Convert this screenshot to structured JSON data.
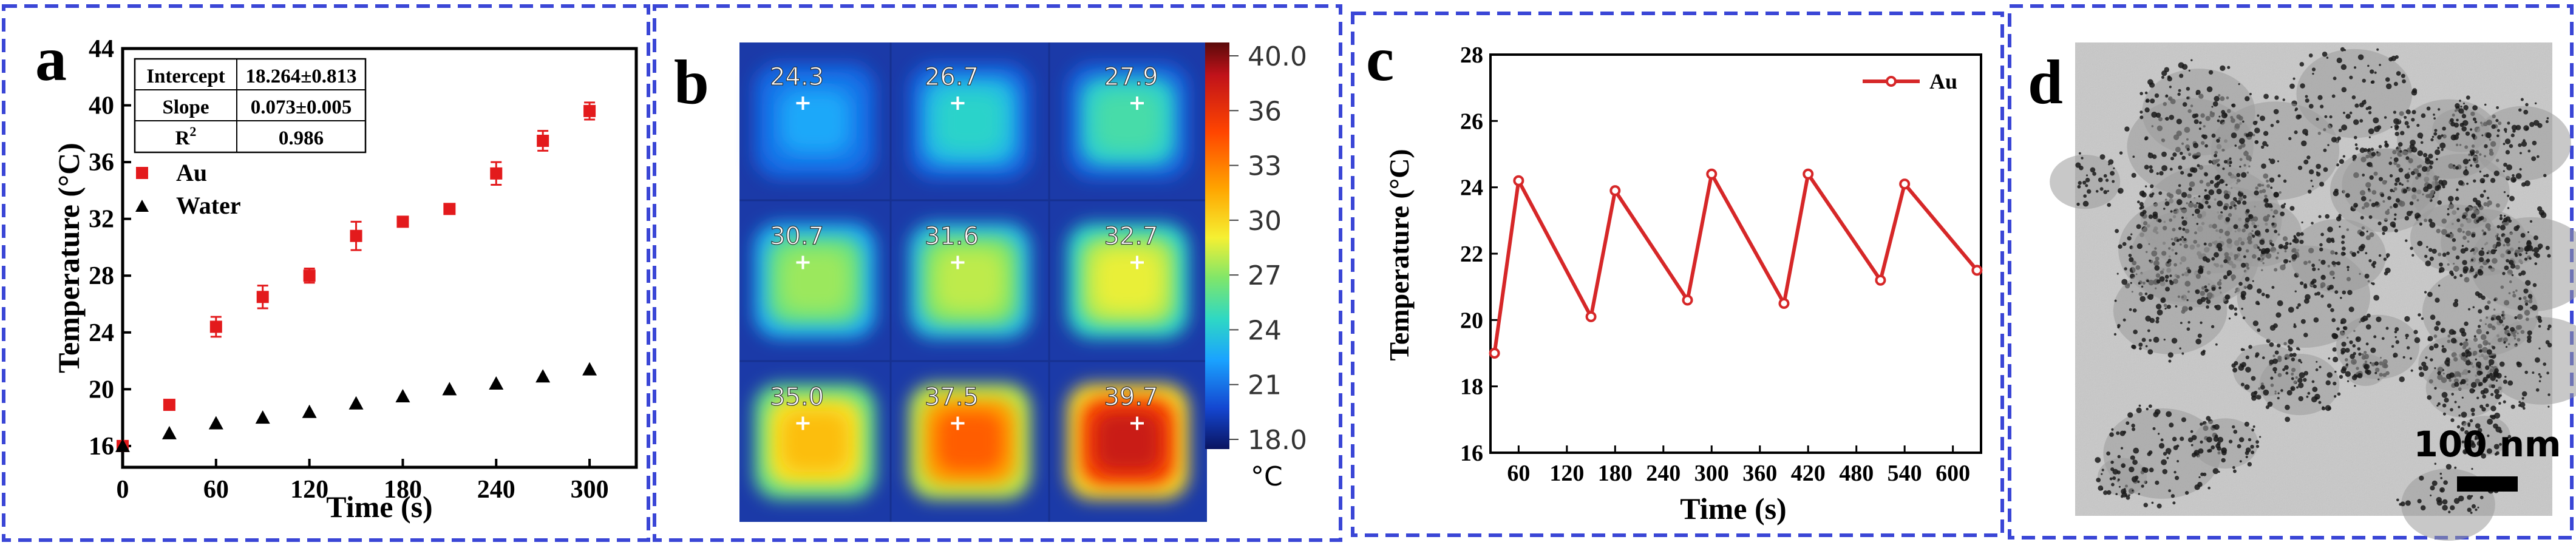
{
  "panels": {
    "a": {
      "letter": "a"
    },
    "b": {
      "letter": "b"
    },
    "c": {
      "letter": "c"
    },
    "d": {
      "letter": "d",
      "scale_bar_label": "100 nm"
    }
  },
  "fit_table": {
    "rows": [
      {
        "label": "Intercept",
        "value": "18.264±0.813"
      },
      {
        "label": "Slope",
        "value": "0.073±0.005"
      },
      {
        "label": "R",
        "sup": "2",
        "value": "0.986"
      }
    ]
  },
  "colors": {
    "au": "#e31a1c",
    "water": "#000000",
    "panel_border": "#3a46d6",
    "c_line": "#d62728"
  },
  "chart_data": [
    {
      "panel": "a",
      "type": "scatter",
      "xlabel": "Time (s)",
      "ylabel": "Temperature (°C)",
      "xlim": [
        0,
        330
      ],
      "ylim": [
        14.5,
        44
      ],
      "xticks": [
        0,
        60,
        120,
        180,
        240,
        300
      ],
      "yticks": [
        16,
        20,
        24,
        28,
        32,
        36,
        40,
        44
      ],
      "legend": "middle-left",
      "series": [
        {
          "name": "Au",
          "marker": "square",
          "x": [
            0,
            30,
            60,
            90,
            120,
            150,
            180,
            210,
            240,
            270,
            300
          ],
          "y": [
            16.0,
            18.9,
            24.4,
            26.5,
            28.0,
            30.8,
            31.8,
            32.7,
            35.2,
            37.5,
            39.6
          ],
          "err": [
            0,
            0.15,
            0.7,
            0.8,
            0.5,
            1.0,
            0.3,
            0.3,
            0.8,
            0.7,
            0.6
          ]
        },
        {
          "name": "Water",
          "marker": "triangle",
          "x": [
            0,
            30,
            60,
            90,
            120,
            150,
            180,
            210,
            240,
            270,
            300
          ],
          "y": [
            16.0,
            16.9,
            17.6,
            18.0,
            18.4,
            19.0,
            19.5,
            20.0,
            20.4,
            20.9,
            21.4
          ]
        }
      ]
    },
    {
      "panel": "b",
      "type": "heatmap",
      "title": "",
      "colorbar_unit": "°C",
      "colorbar_ticks": [
        "40.0",
        "36",
        "33",
        "30",
        "27",
        "24",
        "21",
        "18.0"
      ],
      "colorbar_range": [
        18.0,
        40.0
      ],
      "cells": [
        "24.3",
        "26.7",
        "27.9",
        "30.7",
        "31.6",
        "32.7",
        "35.0",
        "37.5",
        "39.7"
      ]
    },
    {
      "panel": "c",
      "type": "line",
      "xlabel": "Time (s)",
      "ylabel": "Temperature (°C)",
      "xlim": [
        25,
        635
      ],
      "ylim": [
        16,
        28
      ],
      "xticks": [
        60,
        120,
        180,
        240,
        300,
        360,
        420,
        480,
        540,
        600
      ],
      "yticks": [
        16,
        18,
        20,
        22,
        24,
        26,
        28
      ],
      "legend": "top-right",
      "series": [
        {
          "name": "Au",
          "x": [
            30,
            60,
            150,
            180,
            270,
            300,
            390,
            420,
            510,
            540,
            630
          ],
          "y": [
            19.0,
            24.2,
            20.1,
            23.9,
            20.6,
            24.4,
            20.5,
            24.4,
            21.2,
            24.1,
            21.5
          ]
        }
      ]
    }
  ]
}
